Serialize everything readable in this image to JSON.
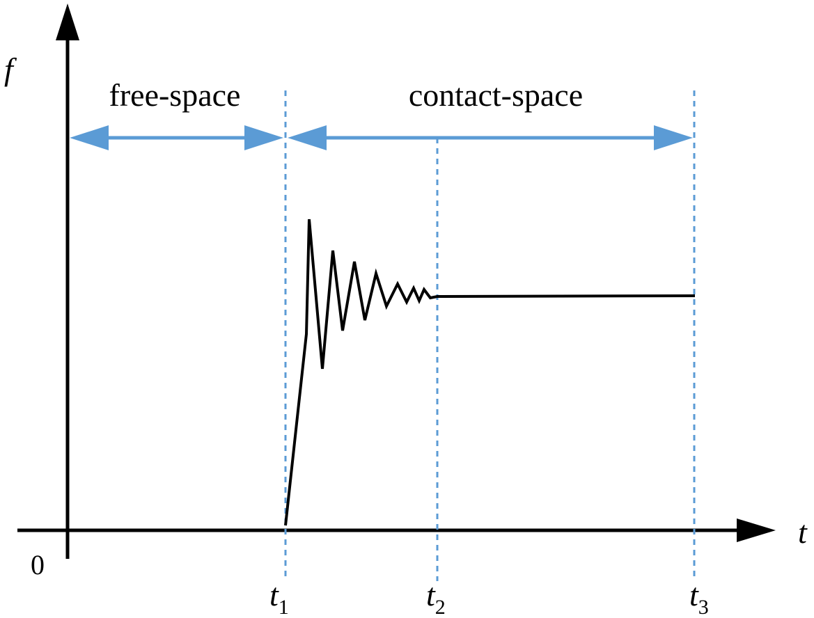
{
  "axes": {
    "y_label": "f",
    "x_label": "t",
    "origin_label": "0"
  },
  "regions": {
    "free_space": "free-space",
    "contact_space": "contact-space"
  },
  "ticks": [
    {
      "name": "t",
      "sub": "1"
    },
    {
      "name": "t",
      "sub": "2"
    },
    {
      "name": "t",
      "sub": "3"
    }
  ],
  "colors": {
    "axis": "#000000",
    "curve": "#000000",
    "marker_lines": "#5b9bd5",
    "arrows": "#5b9bd5"
  }
}
